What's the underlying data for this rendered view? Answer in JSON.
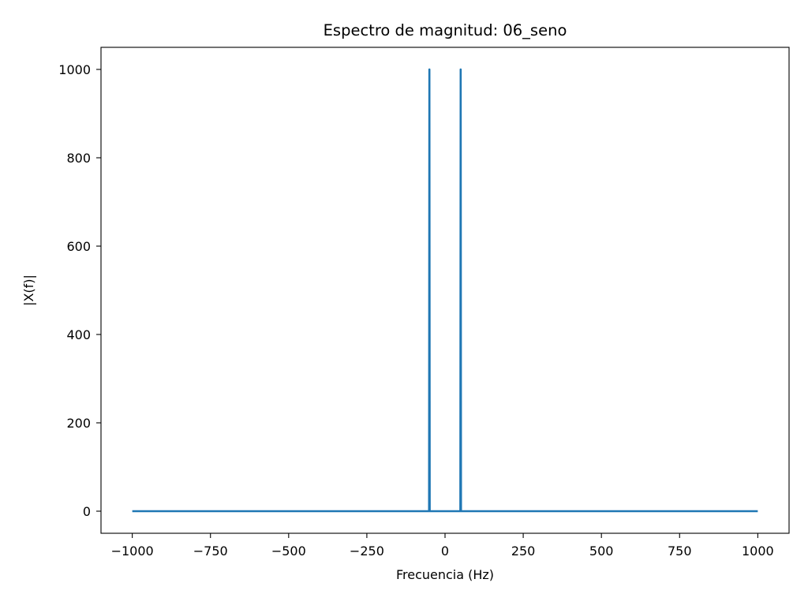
{
  "chart_data": {
    "type": "line",
    "title": "Espectro de magnitud: 06_seno",
    "xlabel": "Frecuencia (Hz)",
    "ylabel": "|X(f)|",
    "xlim": [
      -1100,
      1100
    ],
    "ylim": [
      -50,
      1050
    ],
    "xticks": [
      -1000,
      -750,
      -500,
      -250,
      0,
      250,
      500,
      750,
      1000
    ],
    "xtick_labels": [
      "−1000",
      "−750",
      "−500",
      "−250",
      "0",
      "250",
      "500",
      "750",
      "1000"
    ],
    "yticks": [
      0,
      200,
      400,
      600,
      800,
      1000
    ],
    "ytick_labels": [
      "0",
      "200",
      "400",
      "600",
      "800",
      "1000"
    ],
    "grid": false,
    "series": [
      {
        "color": "#1f77b4",
        "x": [
          -1000,
          -51,
          -50,
          -49,
          49,
          50,
          51,
          1000
        ],
        "y": [
          0,
          0,
          1000,
          0,
          0,
          1000,
          0,
          0
        ]
      }
    ]
  }
}
